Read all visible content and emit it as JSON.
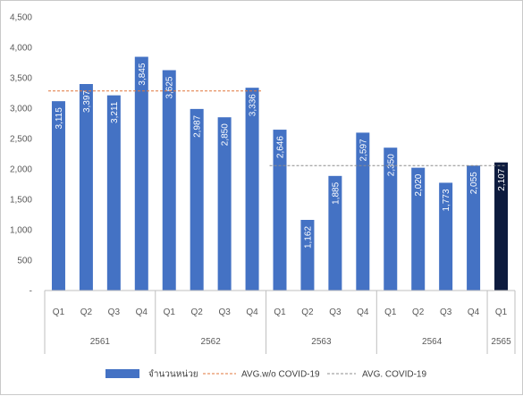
{
  "chart_data": {
    "type": "bar",
    "title": "",
    "xlabel": "",
    "ylabel": "",
    "ylim": [
      0,
      4500
    ],
    "y_ticks": [
      {
        "value": 0,
        "label": "-"
      },
      {
        "value": 500,
        "label": "500"
      },
      {
        "value": 1000,
        "label": "1,000"
      },
      {
        "value": 1500,
        "label": "1,500"
      },
      {
        "value": 2000,
        "label": "2,000"
      },
      {
        "value": 2500,
        "label": "2,500"
      },
      {
        "value": 3000,
        "label": "3,000"
      },
      {
        "value": 3500,
        "label": "3,500"
      },
      {
        "value": 4000,
        "label": "4,000"
      },
      {
        "value": 4500,
        "label": "4,500"
      }
    ],
    "categories": [
      "Q1",
      "Q2",
      "Q3",
      "Q4",
      "Q1",
      "Q2",
      "Q3",
      "Q4",
      "Q1",
      "Q2",
      "Q3",
      "Q4",
      "Q1",
      "Q2",
      "Q3",
      "Q4",
      "Q1"
    ],
    "year_groups": [
      {
        "label": "2561",
        "count": 4
      },
      {
        "label": "2562",
        "count": 4
      },
      {
        "label": "2563",
        "count": 4
      },
      {
        "label": "2564",
        "count": 4
      },
      {
        "label": "2565",
        "count": 1
      }
    ],
    "series": [
      {
        "name": "จำนวนหน่วย",
        "values": [
          3115,
          3397,
          3211,
          3845,
          3625,
          2987,
          2850,
          3336,
          2646,
          1162,
          1885,
          2597,
          2350,
          2020,
          1773,
          2055,
          2107
        ],
        "labels": [
          "3,115",
          "3,397",
          "3,211",
          "3,845",
          "3,625",
          "2,987",
          "2,850",
          "3,336",
          "2,646",
          "1,162",
          "1,885",
          "2,597",
          "2,350",
          "2,020",
          "1,773",
          "2,055",
          "2,107"
        ],
        "color": "#4472c4",
        "highlight_color": "#0d1b3e",
        "highlight_index": 16
      }
    ],
    "reference_lines": [
      {
        "name": "AVG.w/o COVID-19",
        "value": 3283,
        "from_index": 0,
        "to_index": 7,
        "color": "#e0773b"
      },
      {
        "name": "AVG. COVID-19",
        "value": 2056,
        "from_index": 8,
        "to_index": 16,
        "color": "#8c8c8c"
      }
    ],
    "grid": false,
    "legend_position": "bottom"
  }
}
